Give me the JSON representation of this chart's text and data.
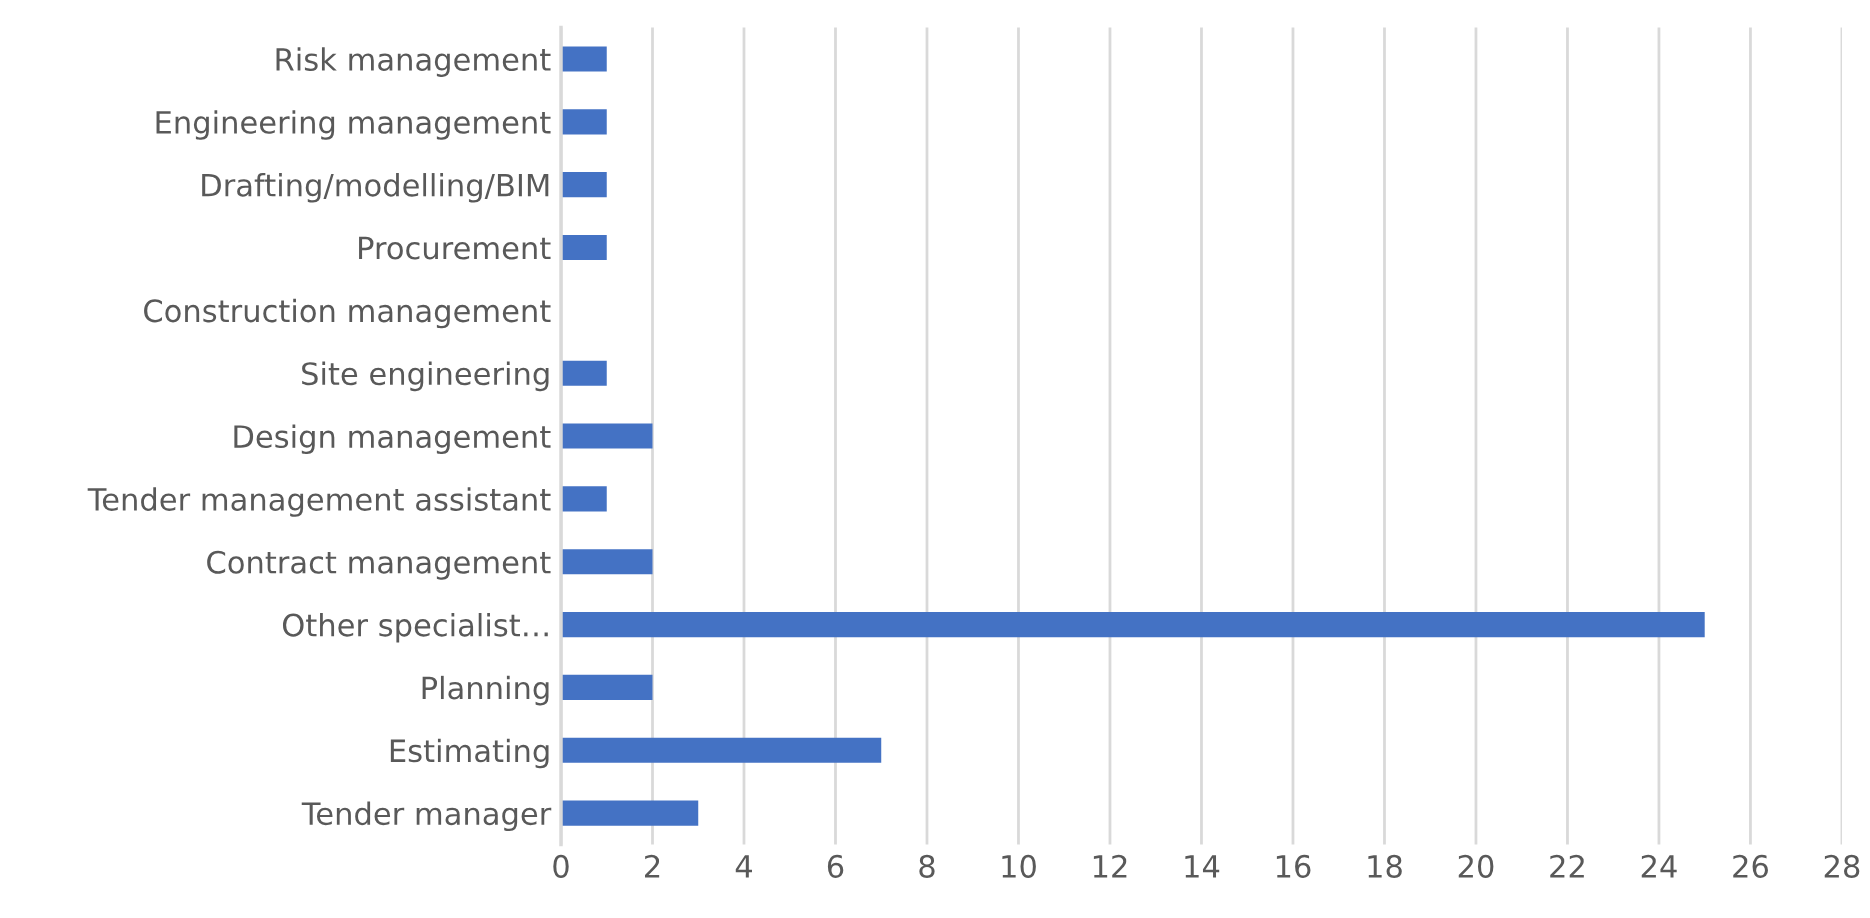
{
  "chart_data": {
    "type": "bar",
    "orientation": "horizontal",
    "categories": [
      "Risk management",
      "Engineering management",
      "Drafting/modelling/BIM",
      "Procurement",
      "Construction management",
      "Site engineering",
      "Design management",
      "Tender management assistant",
      "Contract management",
      "Other specialist…",
      "Planning",
      "Estimating",
      "Tender manager"
    ],
    "values": [
      1,
      1,
      1,
      1,
      0,
      1,
      2,
      1,
      2,
      25,
      2,
      7,
      3
    ],
    "color": "#4472c4",
    "xlim": [
      0,
      28
    ],
    "xticks": [
      0,
      2,
      4,
      6,
      8,
      10,
      12,
      14,
      16,
      18,
      20,
      22,
      24,
      26,
      28
    ],
    "grid": "x"
  }
}
